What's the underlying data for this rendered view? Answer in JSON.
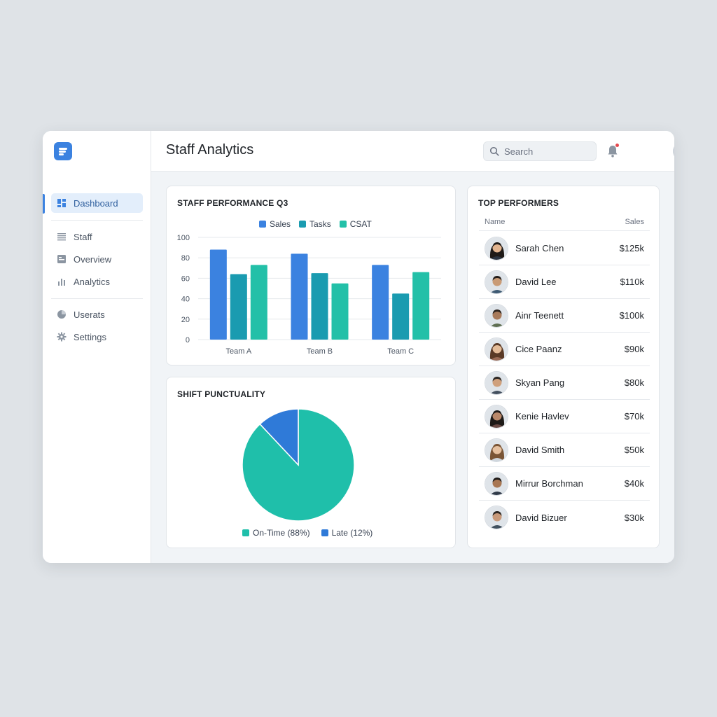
{
  "header": {
    "title": "Staff Analytics",
    "search_placeholder": "Search"
  },
  "sidebar": {
    "items": [
      {
        "label": "Dashboard",
        "icon": "dashboard-icon",
        "active": true
      },
      {
        "label": "Staff",
        "icon": "list-icon"
      },
      {
        "label": "Overview",
        "icon": "overview-icon"
      },
      {
        "label": "Analytics",
        "icon": "bar-chart-icon"
      },
      {
        "label": "Userats",
        "icon": "pie-icon"
      },
      {
        "label": "Settings",
        "icon": "gear-icon"
      }
    ]
  },
  "colors": {
    "accent": "#3b82e0",
    "sales": "#3b82e0",
    "tasks": "#1a9bb0",
    "csat": "#23c0a8",
    "on_time": "#1fbfaa",
    "late": "#2f7ad8"
  },
  "performance_card": {
    "title": "STAFF PERFORMANCE Q3"
  },
  "punctuality_card": {
    "title": "SHIFT PUNCTUALITY"
  },
  "performers_card": {
    "title": "TOP PERFORMERS",
    "col_name": "Name",
    "col_sales": "Sales",
    "rows": [
      {
        "name": "Sarah Chen",
        "sales": "$125k"
      },
      {
        "name": "David Lee",
        "sales": "$110k"
      },
      {
        "name": "Ainr Teenett",
        "sales": "$100k"
      },
      {
        "name": "Cice Paanz",
        "sales": "$90k"
      },
      {
        "name": "Skyan Pang",
        "sales": "$80k"
      },
      {
        "name": "Kenie Havlev",
        "sales": "$70k"
      },
      {
        "name": "David Smith",
        "sales": "$50k"
      },
      {
        "name": "Mirrur Borchman",
        "sales": "$40k"
      },
      {
        "name": "David Bizuer",
        "sales": "$30k"
      }
    ]
  },
  "chart_data": [
    {
      "type": "bar",
      "title": "STAFF PERFORMANCE Q3",
      "categories": [
        "Team A",
        "Team B",
        "Team C"
      ],
      "series": [
        {
          "name": "Sales",
          "values": [
            88,
            84,
            73
          ]
        },
        {
          "name": "Tasks",
          "values": [
            64,
            65,
            45
          ]
        },
        {
          "name": "CSAT",
          "values": [
            73,
            55,
            66
          ]
        }
      ],
      "ylim": [
        0,
        100
      ],
      "yticks": [
        0,
        20,
        40,
        60,
        80,
        100
      ],
      "grid": true,
      "legend": "top-center"
    },
    {
      "type": "pie",
      "title": "SHIFT PUNCTUALITY",
      "labels": [
        "On-Time (88%)",
        "Late (12%)"
      ],
      "values": [
        88,
        12
      ],
      "legend": "bottom"
    }
  ]
}
